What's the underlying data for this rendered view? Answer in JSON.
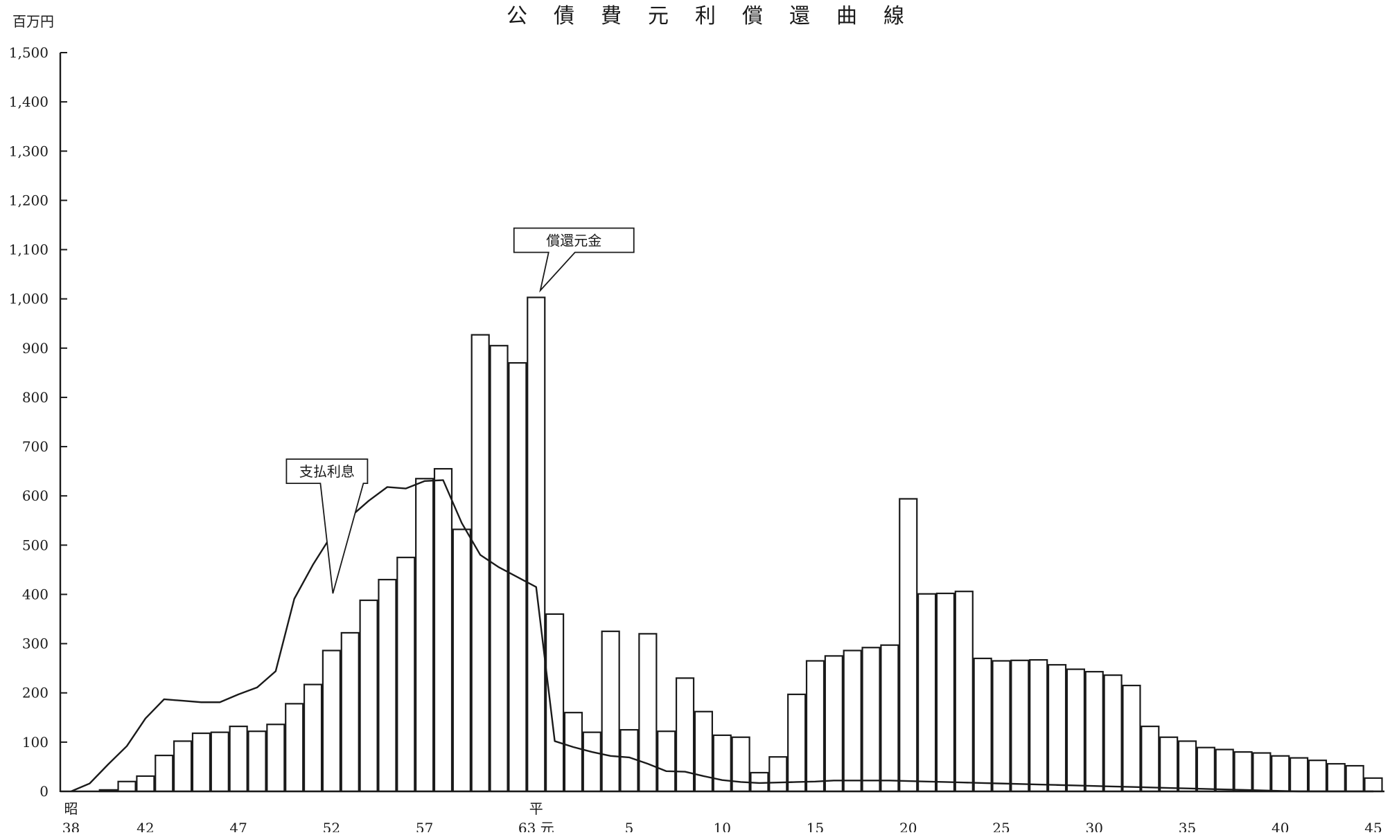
{
  "chart_data": {
    "type": "bar",
    "title": "公　債　費　元　利　償　還　曲　線",
    "unit_label": "百万円",
    "y_tick_labels": [
      "0",
      "100",
      "200",
      "300",
      "400",
      "500",
      "600",
      "700",
      "800",
      "900",
      "1,000",
      "1,100",
      "1,200",
      "1,300",
      "1,400",
      "1,500"
    ],
    "ylim": [
      0,
      1500
    ],
    "x_tick_labels": [
      {
        "index": 0,
        "top": "昭",
        "bottom": "38"
      },
      {
        "index": 4,
        "top": "",
        "bottom": "42"
      },
      {
        "index": 9,
        "top": "",
        "bottom": "47"
      },
      {
        "index": 14,
        "top": "",
        "bottom": "52"
      },
      {
        "index": 19,
        "top": "",
        "bottom": "57"
      },
      {
        "index": 25,
        "top": "平",
        "bottom": "63 元"
      },
      {
        "index": 30,
        "top": "",
        "bottom": "5"
      },
      {
        "index": 35,
        "top": "",
        "bottom": "10"
      },
      {
        "index": 40,
        "top": "",
        "bottom": "15"
      },
      {
        "index": 45,
        "top": "",
        "bottom": "20"
      },
      {
        "index": 50,
        "top": "",
        "bottom": "25"
      },
      {
        "index": 55,
        "top": "",
        "bottom": "30"
      },
      {
        "index": 60,
        "top": "",
        "bottom": "35"
      },
      {
        "index": 65,
        "top": "",
        "bottom": "40"
      },
      {
        "index": 70,
        "top": "",
        "bottom": "45"
      }
    ],
    "series": [
      {
        "name": "償還元金",
        "kind": "bar",
        "values": [
          0,
          0,
          3,
          20,
          31,
          73,
          102,
          118,
          120,
          132,
          122,
          136,
          178,
          217,
          286,
          322,
          388,
          430,
          475,
          635,
          655,
          532,
          927,
          905,
          870,
          1003,
          360,
          160,
          120,
          325,
          125,
          320,
          122,
          230,
          162,
          114,
          110,
          38,
          70,
          197,
          265,
          275,
          286,
          292,
          297,
          594,
          401,
          402,
          406,
          270,
          265,
          266,
          267,
          257,
          248,
          243,
          236,
          215,
          132,
          110,
          102,
          89,
          85,
          80,
          78,
          72,
          68,
          63,
          56,
          52,
          27
        ]
      },
      {
        "name": "支払利息",
        "kind": "line",
        "values": [
          0,
          16,
          55,
          92,
          148,
          187,
          184,
          181,
          181,
          197,
          211,
          244,
          391,
          460,
          520,
          557,
          590,
          618,
          615,
          630,
          632,
          545,
          480,
          455,
          435,
          415,
          102,
          90,
          80,
          72,
          69,
          56,
          41,
          40,
          31,
          23,
          19,
          17,
          18,
          19,
          20,
          22,
          22,
          22,
          22,
          21,
          20,
          19,
          18,
          17,
          16,
          15,
          14,
          13,
          12,
          11,
          10,
          9,
          8,
          7,
          6,
          5,
          4,
          3,
          2,
          1,
          0,
          0,
          0,
          0,
          0
        ]
      }
    ],
    "annotations": [
      {
        "text": "償還元金",
        "series": "償還元金",
        "point_index": 25
      },
      {
        "text": "支払利息",
        "series": "支払利息",
        "point_index": 14
      }
    ],
    "grid": false,
    "legend": "none"
  }
}
